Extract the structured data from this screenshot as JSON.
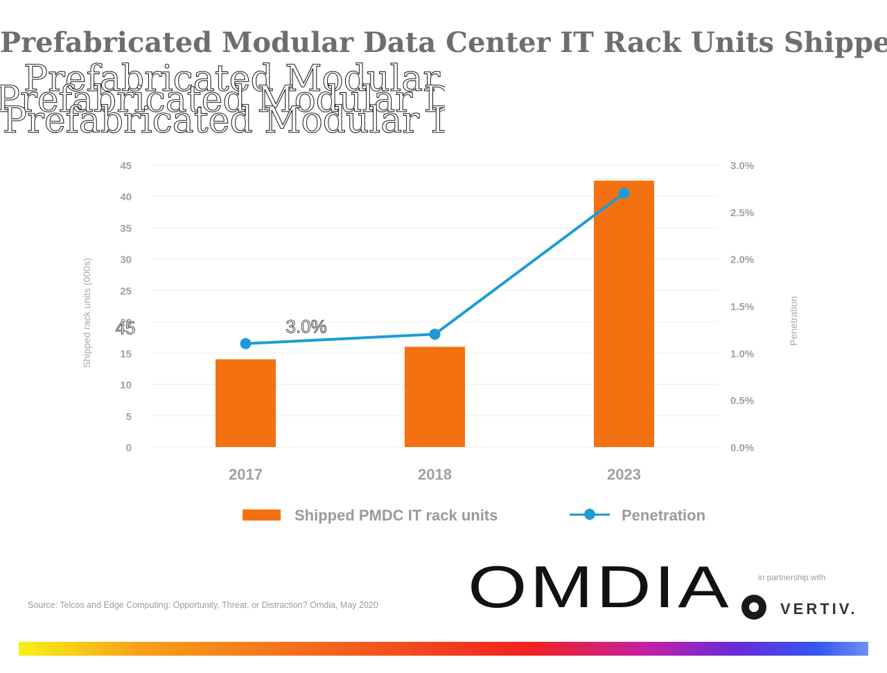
{
  "title": "Prefabricated Modular Data Center IT Rack Units Shipped",
  "ghost_title": "Prefabricated Modular Data Center IT Rack Units Shipped",
  "source": "Source: Telcos and Edge Computing: Opportunity, Threat, or Distraction? Omdia, May 2020",
  "logo": {
    "brand": "OMDIA",
    "partner_text": "in partnership with",
    "partner_brand": "VERTIV."
  },
  "colors": {
    "bar": "#f47111",
    "line": "#1e9bd7",
    "title": "#6e6e6e"
  },
  "chart_data": {
    "type": "bar",
    "title": "Prefabricated Modular Data Center IT Rack Units Shipped",
    "categories": [
      "2017",
      "2018",
      "2023"
    ],
    "series": [
      {
        "name": "Shipped PMDC IT rack units",
        "type": "bar",
        "axis": "left",
        "values": [
          14,
          16,
          42.5
        ]
      },
      {
        "name": "Penetration",
        "type": "line",
        "axis": "right",
        "values": [
          1.1,
          1.2,
          2.7
        ]
      }
    ],
    "ylabel": "Shipped rack units (000s)",
    "y2label": "Penetration",
    "ylim": [
      0,
      45
    ],
    "y2lim": [
      0,
      3.0
    ],
    "yticks": [
      "0",
      "5",
      "10",
      "15",
      "20",
      "25",
      "30",
      "35",
      "40",
      "45"
    ],
    "y2ticks": [
      "0.0%",
      "0.5%",
      "1.0%",
      "1.5%",
      "2.0%",
      "2.5%",
      "3.0%"
    ],
    "overlay_labels": {
      "left": "45",
      "center": "3.0%"
    },
    "grid": true,
    "legend": "bottom"
  }
}
